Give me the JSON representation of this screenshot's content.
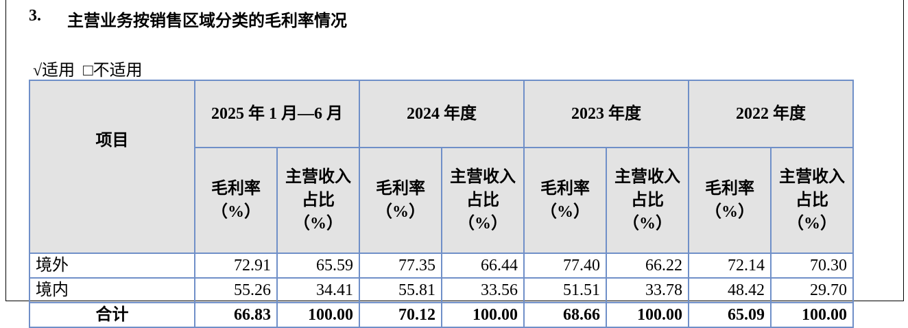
{
  "header": {
    "number": "3.",
    "title": "主营业务按销售区域分类的毛利率情况"
  },
  "applicability": {
    "applicable": "√适用",
    "not_applicable": "□不适用"
  },
  "table": {
    "item_header": "项目",
    "periods": [
      "2025 年 1 月—6 月",
      "2024 年度",
      "2023 年度",
      "2022 年度"
    ],
    "subheaders": [
      "毛利率（%）",
      "主营收入占比（%）"
    ],
    "rows": [
      [
        "境外",
        "72.91",
        "65.59",
        "77.35",
        "66.44",
        "77.40",
        "66.22",
        "72.14",
        "70.30"
      ],
      [
        "境内",
        "55.26",
        "34.41",
        "55.81",
        "33.56",
        "51.51",
        "33.78",
        "48.42",
        "29.70"
      ],
      [
        "合计",
        "66.83",
        "100.00",
        "70.12",
        "100.00",
        "68.66",
        "100.00",
        "65.09",
        "100.00"
      ]
    ]
  }
}
